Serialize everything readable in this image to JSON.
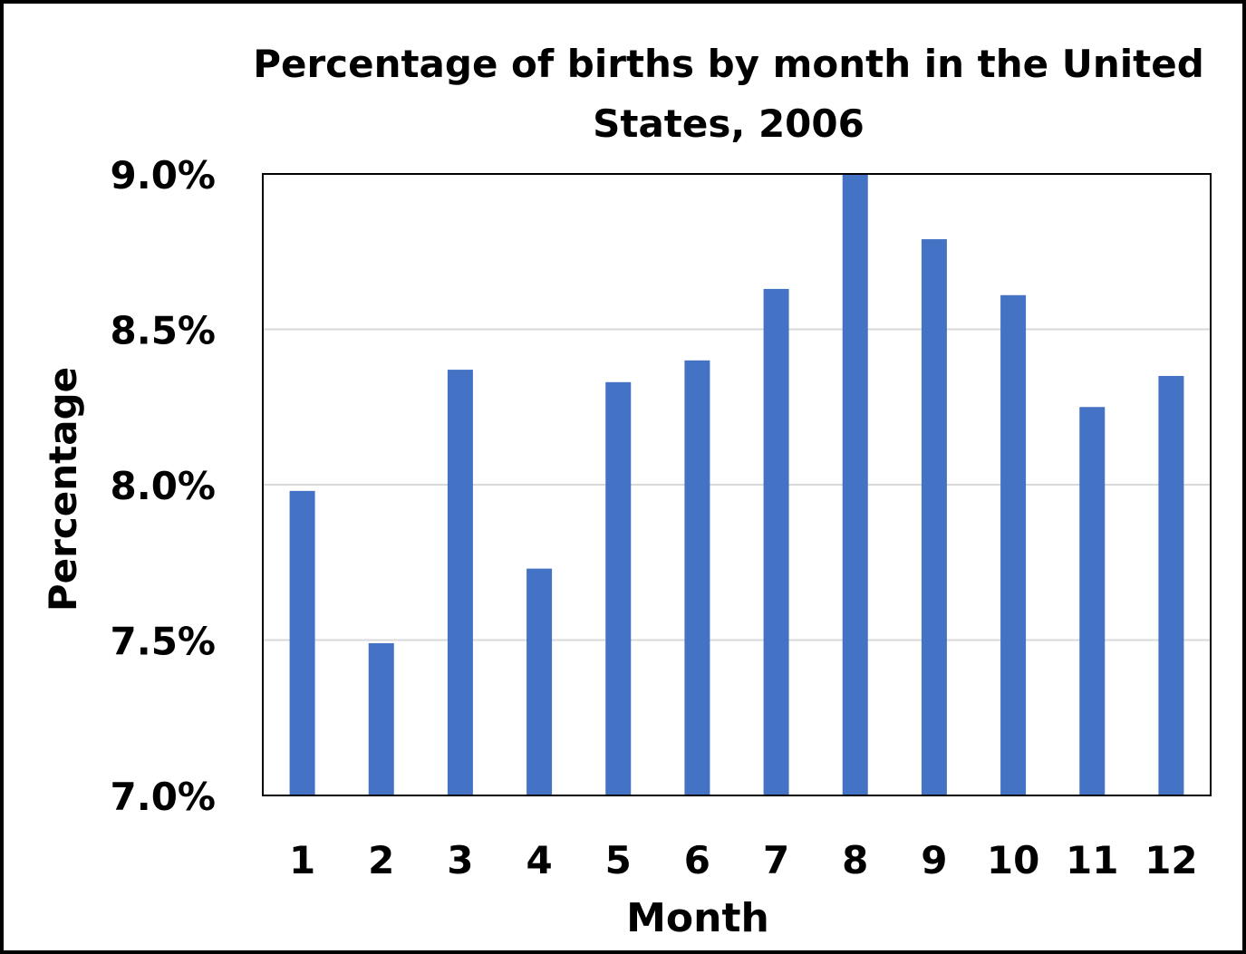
{
  "chart_data": {
    "type": "bar",
    "title": "Percentage of births by month in the United States, 2006",
    "xlabel": "Month",
    "ylabel": "Percentage",
    "categories": [
      "1",
      "2",
      "3",
      "4",
      "5",
      "6",
      "7",
      "8",
      "9",
      "10",
      "11",
      "12"
    ],
    "values": [
      7.98,
      7.49,
      8.37,
      7.73,
      8.33,
      8.4,
      8.63,
      9.0,
      8.79,
      8.61,
      8.25,
      8.35
    ],
    "ylim": [
      7.0,
      9.0
    ],
    "yticks": [
      7.0,
      7.5,
      8.0,
      8.5,
      9.0
    ],
    "ytick_labels": [
      "7.0%",
      "7.5%",
      "8.0%",
      "8.5%",
      "9.0%"
    ],
    "grid": true,
    "legend": "none",
    "colors": {
      "bar": "#4472C4",
      "gridline": "#D9D9D9",
      "plot_border": "#000000"
    }
  }
}
